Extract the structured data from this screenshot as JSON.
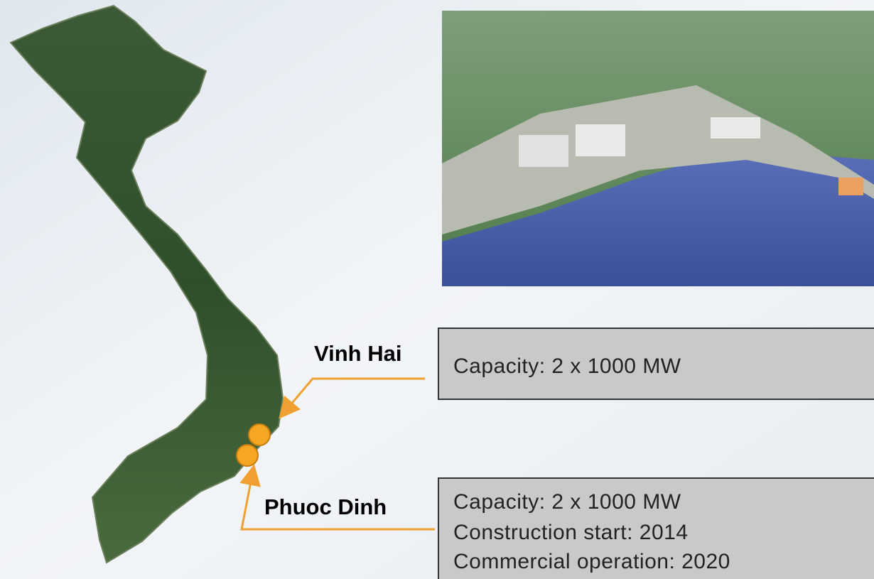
{
  "sites": [
    {
      "name": "Vinh Hai",
      "details": [
        "Capacity: 2 x 1000 MW"
      ]
    },
    {
      "name": "Phuoc Dinh",
      "details": [
        "Capacity: 2 x 1000 MW",
        "Construction start: 2014",
        "Commercial operation: 2020"
      ]
    }
  ]
}
